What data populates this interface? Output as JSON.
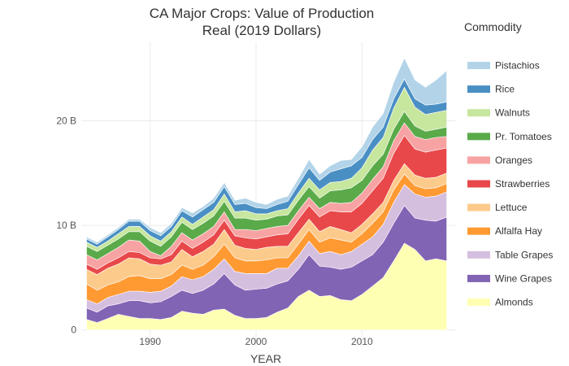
{
  "chart_data": {
    "type": "area",
    "stacked": true,
    "title": [
      "CA Major Crops:  Value of Production",
      "Real (2019 Dollars)"
    ],
    "xlabel": "YEAR",
    "ylabel": "",
    "xlim": [
      1983.5,
      2018.8
    ],
    "ylim": [
      -1.5,
      27.5
    ],
    "x_ticks": [
      1990,
      2000,
      2010
    ],
    "y_ticks": [
      {
        "value": 0,
        "label": "0"
      },
      {
        "value": 10,
        "label": "10 B"
      },
      {
        "value": 20,
        "label": "20 B"
      }
    ],
    "legend_title": "Commodity",
    "legend_position": "right",
    "x": [
      1984,
      1985,
      1986,
      1987,
      1988,
      1989,
      1990,
      1991,
      1992,
      1993,
      1994,
      1995,
      1996,
      1997,
      1998,
      1999,
      2000,
      2001,
      2002,
      2003,
      2004,
      2005,
      2006,
      2007,
      2008,
      2009,
      2010,
      2011,
      2012,
      2013,
      2014,
      2015,
      2016,
      2017,
      2018
    ],
    "series": [
      {
        "name": "Almonds",
        "color": "#ffffb3",
        "values": [
          1.0,
          0.7,
          1.1,
          1.5,
          1.3,
          1.1,
          1.1,
          1.0,
          1.2,
          1.8,
          1.6,
          1.5,
          1.9,
          2.0,
          1.4,
          1.1,
          1.1,
          1.2,
          1.7,
          2.1,
          3.2,
          3.8,
          3.2,
          3.3,
          2.9,
          2.8,
          3.4,
          4.2,
          5.0,
          6.6,
          8.3,
          7.7,
          6.6,
          6.8,
          6.6
        ]
      },
      {
        "name": "Wine Grapes",
        "color": "#8264b4",
        "values": [
          1.1,
          1.0,
          1.2,
          1.0,
          1.5,
          1.7,
          1.5,
          1.7,
          2.0,
          2.0,
          1.9,
          2.3,
          2.5,
          3.4,
          2.9,
          2.7,
          2.8,
          2.8,
          2.7,
          2.6,
          2.6,
          3.4,
          2.9,
          2.7,
          2.9,
          3.2,
          3.2,
          3.0,
          3.4,
          3.6,
          3.6,
          3.0,
          3.9,
          3.6,
          4.2
        ]
      },
      {
        "name": "Table Grapes",
        "color": "#d5bfdf",
        "values": [
          0.8,
          0.8,
          0.8,
          0.9,
          0.9,
          0.9,
          1.0,
          1.0,
          1.0,
          1.3,
          1.3,
          1.3,
          1.4,
          1.4,
          1.3,
          1.6,
          1.5,
          1.4,
          1.5,
          1.2,
          1.3,
          1.3,
          1.2,
          1.5,
          1.4,
          1.5,
          1.6,
          1.7,
          1.7,
          2.0,
          2.0,
          2.3,
          2.2,
          2.4,
          2.4
        ]
      },
      {
        "name": "Alfalfa Hay",
        "color": "#ff9a33",
        "values": [
          1.5,
          1.3,
          1.2,
          1.2,
          1.4,
          1.5,
          1.3,
          1.2,
          1.1,
          1.1,
          1.0,
          1.1,
          1.2,
          1.4,
          1.3,
          1.2,
          1.2,
          1.3,
          1.0,
          1.0,
          1.1,
          1.1,
          1.1,
          1.3,
          1.4,
          0.9,
          1.0,
          1.3,
          1.2,
          1.2,
          1.0,
          0.8,
          0.8,
          0.8,
          0.8
        ]
      },
      {
        "name": "Lettuce",
        "color": "#fccb8c",
        "values": [
          1.4,
          1.5,
          1.6,
          1.7,
          1.8,
          1.6,
          1.4,
          1.3,
          1.2,
          1.5,
          1.2,
          1.3,
          1.2,
          1.4,
          1.2,
          1.2,
          1.1,
          1.2,
          1.1,
          1.1,
          1.1,
          1.0,
          1.0,
          1.1,
          1.0,
          0.9,
          0.9,
          0.9,
          0.9,
          0.9,
          1.0,
          1.0,
          1.0,
          1.0,
          1.0
        ]
      },
      {
        "name": "Strawberries",
        "color": "#e8484a",
        "values": [
          0.5,
          0.5,
          0.5,
          0.6,
          0.6,
          0.6,
          0.6,
          0.6,
          0.7,
          0.8,
          0.8,
          0.9,
          0.9,
          0.9,
          0.9,
          1.0,
          1.0,
          1.0,
          1.1,
          1.2,
          1.3,
          1.3,
          1.4,
          1.5,
          1.7,
          2.0,
          2.0,
          2.2,
          2.3,
          2.6,
          2.7,
          2.5,
          2.5,
          2.6,
          2.4
        ]
      },
      {
        "name": "Oranges",
        "color": "#f7a3a3",
        "values": [
          0.9,
          0.9,
          0.9,
          1.0,
          1.1,
          1.1,
          0.6,
          0.3,
          0.8,
          0.8,
          0.8,
          0.8,
          0.8,
          0.8,
          0.6,
          0.8,
          0.8,
          0.8,
          0.8,
          0.8,
          0.8,
          0.8,
          0.8,
          0.8,
          0.8,
          0.9,
          1.0,
          1.1,
          1.1,
          1.2,
          1.2,
          1.2,
          1.2,
          1.2,
          1.1
        ]
      },
      {
        "name": "Pr. Tomatoes",
        "color": "#5aaa4a",
        "values": [
          0.8,
          0.8,
          0.8,
          0.8,
          0.8,
          0.9,
          1.0,
          0.9,
          0.9,
          1.0,
          1.0,
          1.0,
          1.0,
          1.0,
          1.1,
          1.1,
          1.0,
          0.9,
          1.0,
          1.0,
          1.0,
          1.0,
          1.0,
          1.1,
          1.3,
          1.4,
          1.2,
          1.3,
          1.2,
          1.1,
          1.1,
          1.0,
          0.8,
          0.8,
          0.9
        ]
      },
      {
        "name": "Walnuts",
        "color": "#c7e69e",
        "values": [
          0.4,
          0.4,
          0.4,
          0.5,
          0.5,
          0.5,
          0.5,
          0.5,
          0.5,
          0.5,
          0.5,
          0.6,
          0.6,
          0.7,
          0.6,
          0.7,
          0.6,
          0.5,
          0.5,
          0.6,
          0.7,
          0.8,
          0.8,
          0.8,
          0.8,
          0.9,
          1.2,
          1.5,
          1.6,
          2.0,
          2.3,
          1.8,
          1.6,
          1.6,
          1.6
        ]
      },
      {
        "name": "Rice",
        "color": "#4a8fc4",
        "values": [
          0.3,
          0.3,
          0.4,
          0.4,
          0.5,
          0.5,
          0.5,
          0.5,
          0.5,
          0.6,
          0.7,
          0.7,
          0.7,
          0.7,
          0.7,
          0.7,
          0.6,
          0.5,
          0.6,
          0.7,
          0.8,
          1.0,
          0.9,
          1.0,
          1.2,
          1.2,
          1.0,
          1.0,
          1.0,
          0.9,
          0.8,
          0.8,
          0.9,
          0.8,
          0.8
        ]
      },
      {
        "name": "Pistachios",
        "color": "#b3d4e8",
        "values": [
          0.2,
          0.2,
          0.2,
          0.2,
          0.2,
          0.2,
          0.3,
          0.3,
          0.3,
          0.3,
          0.4,
          0.3,
          0.4,
          0.4,
          0.4,
          0.5,
          0.5,
          0.4,
          0.5,
          0.5,
          0.6,
          0.8,
          0.6,
          0.6,
          0.8,
          0.6,
          1.0,
          1.2,
          1.3,
          1.6,
          2.0,
          1.8,
          1.7,
          2.3,
          3.0
        ]
      }
    ]
  }
}
